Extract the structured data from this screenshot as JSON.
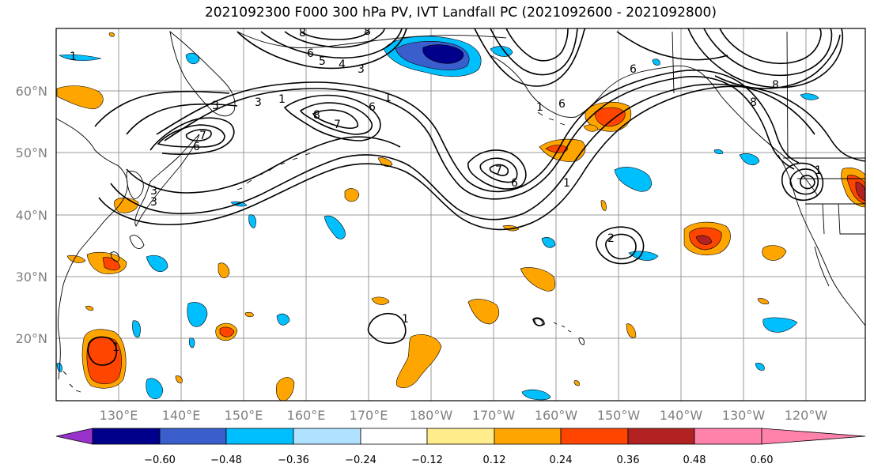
{
  "title": "2021092300 F000 300 hPa PV, IVT Landfall PC (2021092600 - 2021092800)",
  "lat_labels": [
    "60°N",
    "50°N",
    "40°N",
    "30°N",
    "20°N"
  ],
  "lon_labels": [
    "130°E",
    "140°E",
    "150°E",
    "160°E",
    "170°E",
    "180°W",
    "170°W",
    "160°W",
    "150°W",
    "140°W",
    "130°W",
    "120°W"
  ],
  "colorbar": {
    "colors": [
      "#9932CC",
      "#00008B",
      "#3A5FCD",
      "#00BFFF",
      "#B0E2FF",
      "#FFFFFF",
      "#FFEC8B",
      "#FFA500",
      "#FF4500",
      "#B22222",
      "#FF82AB"
    ],
    "tick_labels": [
      "−0.60",
      "−0.48",
      "−0.36",
      "−0.24",
      "−0.12",
      "0.12",
      "0.24",
      "0.36",
      "0.48",
      "0.60"
    ]
  },
  "contour_labels": [
    "8",
    "6",
    "5",
    "4",
    "3",
    "3",
    "1",
    "3",
    "6",
    "7",
    "8",
    "7",
    "6",
    "1",
    "3",
    "1",
    "6",
    "7",
    "6",
    "1",
    "8",
    "8",
    "1",
    "1",
    "2",
    "1",
    "1",
    "3",
    "8",
    "6"
  ],
  "colors": {
    "land_outline": "#000000",
    "grid": "#999999",
    "contour": "#000000"
  }
}
